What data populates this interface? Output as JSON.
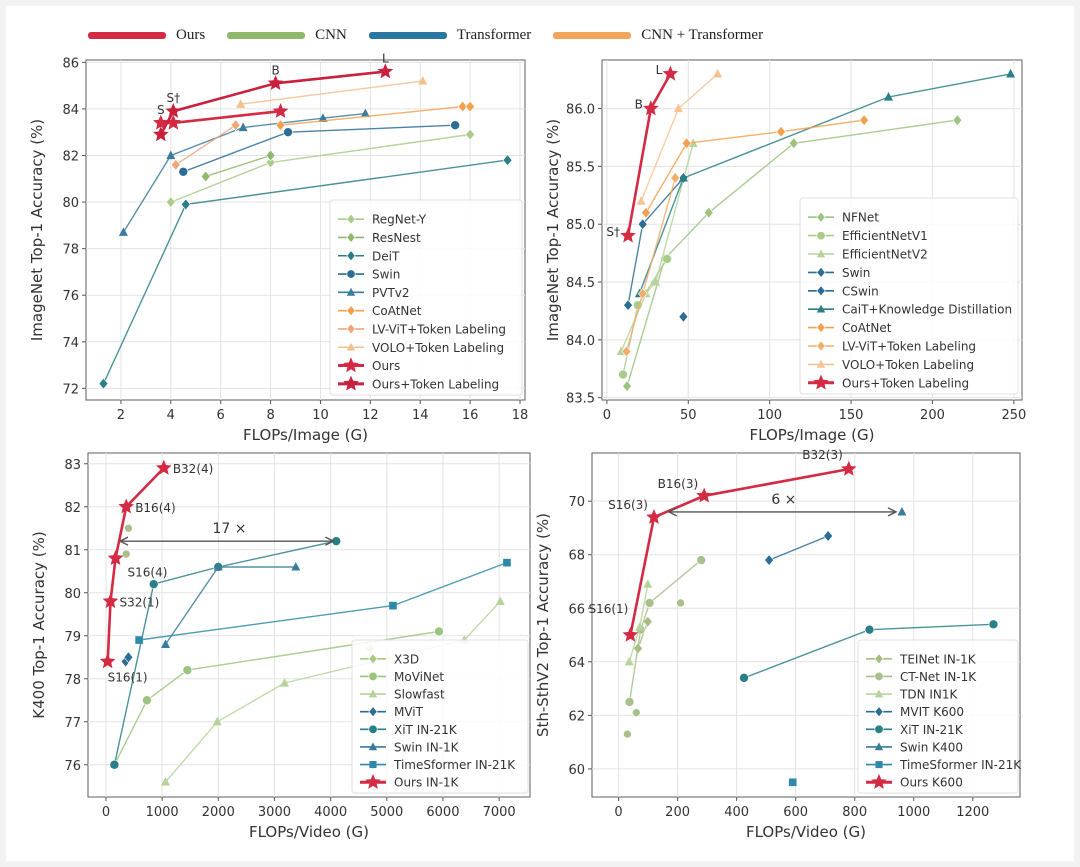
{
  "top_legend": [
    {
      "label": "Ours",
      "color": "#d42a44"
    },
    {
      "label": "CNN",
      "color": "#8fb86a"
    },
    {
      "label": "Transformer",
      "color": "#2b76a0"
    },
    {
      "label": "CNN + Transformer",
      "color": "#f5a55a"
    }
  ],
  "chart_data": [
    {
      "type": "line",
      "xlabel": "FLOPs/Image (G)",
      "ylabel": "ImageNet Top-1 Accuracy (%)",
      "xlim": [
        0.6,
        18.2
      ],
      "ylim": [
        71.5,
        86.1
      ],
      "xticks": [
        2,
        4,
        6,
        8,
        10,
        12,
        14,
        16,
        18
      ],
      "yticks": [
        72,
        74,
        76,
        78,
        80,
        82,
        84,
        86
      ],
      "grid": true,
      "legend_position": "lower-right",
      "series": [
        {
          "name": "RegNet-Y",
          "color": "#a9cc8a",
          "marker": "diamond",
          "x": [
            4.0,
            8.0,
            16.0
          ],
          "y": [
            80.0,
            81.7,
            82.9
          ]
        },
        {
          "name": "ResNest",
          "color": "#8fb86a",
          "marker": "diamond",
          "x": [
            5.4,
            8.0
          ],
          "y": [
            81.1,
            82.0
          ]
        },
        {
          "name": "DeiT",
          "color": "#2a7f86",
          "marker": "diamond",
          "x": [
            1.3,
            4.6,
            17.5
          ],
          "y": [
            72.2,
            79.9,
            81.8
          ]
        },
        {
          "name": "Swin",
          "color": "#2b6d94",
          "marker": "circle",
          "x": [
            4.5,
            8.7,
            15.4
          ],
          "y": [
            81.3,
            83.0,
            83.3
          ]
        },
        {
          "name": "PVTv2",
          "color": "#3a7c9c",
          "marker": "triangle",
          "x": [
            2.1,
            4.0,
            6.9,
            10.1,
            11.8
          ],
          "y": [
            78.7,
            82.0,
            83.2,
            83.6,
            83.8
          ]
        },
        {
          "name": "CoAtNet",
          "color": "#f5a04e",
          "marker": "diamond",
          "x": [
            8.4,
            15.7,
            16.0
          ],
          "y": [
            83.3,
            84.1,
            84.1
          ]
        },
        {
          "name": "LV-ViT+Token Labeling",
          "color": "#efa77a",
          "marker": "diamond",
          "x": [
            4.2,
            6.6
          ],
          "y": [
            81.6,
            83.3
          ]
        },
        {
          "name": "VOLO+Token Labeling",
          "color": "#f5c08e",
          "marker": "triangle",
          "x": [
            6.8,
            14.1
          ],
          "y": [
            84.2,
            85.2
          ]
        },
        {
          "name": "Ours",
          "color": "#d42a44",
          "marker": "star",
          "x": [
            3.6,
            4.1,
            8.4
          ],
          "y": [
            83.4,
            83.4,
            83.9
          ]
        },
        {
          "name": "Ours+Token Labeling",
          "color": "#c9203e",
          "marker": "star",
          "x": [
            3.6,
            4.1,
            8.2,
            12.6
          ],
          "y": [
            82.9,
            83.9,
            85.1,
            85.6
          ]
        }
      ],
      "annotations": [
        {
          "text": "S",
          "x": 3.6,
          "y": 83.4
        },
        {
          "text": "S†",
          "x": 4.1,
          "y": 83.9
        },
        {
          "text": "B",
          "x": 8.2,
          "y": 85.1
        },
        {
          "text": "L",
          "x": 12.6,
          "y": 85.6
        }
      ]
    },
    {
      "type": "line",
      "xlabel": "FLOPs/Image (G)",
      "ylabel": "ImageNet Top-1 Accuracy (%)",
      "xlim": [
        -3,
        255
      ],
      "ylim": [
        83.48,
        86.42
      ],
      "xticks": [
        0,
        50,
        100,
        150,
        200,
        250
      ],
      "yticks": [
        83.5,
        84.0,
        84.5,
        85.0,
        85.5,
        86.0
      ],
      "ytick_labels": [
        "83.5",
        "84.0",
        "84.5",
        "85.0",
        "85.5",
        "86.0"
      ],
      "grid": true,
      "legend_position": "lower-right",
      "series": [
        {
          "name": "NFNet",
          "color": "#9cc47e",
          "marker": "diamond",
          "x": [
            12.4,
            35.5,
            62.6,
            114.8,
            215.3
          ],
          "y": [
            83.6,
            84.7,
            85.1,
            85.7,
            85.9
          ]
        },
        {
          "name": "EfficientNetV1",
          "color": "#a9cc8a",
          "marker": "circle",
          "x": [
            9.9,
            19.0,
            37.0
          ],
          "y": [
            83.7,
            84.3,
            84.7
          ]
        },
        {
          "name": "EfficientNetV2",
          "color": "#b5d39b",
          "marker": "triangle",
          "x": [
            8.8,
            24.0,
            30.0,
            53.0
          ],
          "y": [
            83.9,
            84.4,
            84.5,
            85.7
          ]
        },
        {
          "name": "Swin",
          "color": "#2b6d94",
          "marker": "diamond",
          "x": [
            47.0
          ],
          "y": [
            84.2
          ]
        },
        {
          "name": "CSwin",
          "color": "#2b6d94",
          "marker": "diamond",
          "x": [
            13.0,
            22.0,
            47.0
          ],
          "y": [
            84.3,
            85.0,
            85.4
          ]
        },
        {
          "name": "CaiT+Knowledge Distillation",
          "color": "#2a7f86",
          "marker": "triangle",
          "x": [
            20.0,
            47.0,
            173.0,
            248.0
          ],
          "y": [
            84.4,
            85.4,
            86.1,
            86.3
          ]
        },
        {
          "name": "CoAtNet",
          "color": "#f5a04e",
          "marker": "diamond",
          "x": [
            24.0,
            49.0,
            107.0,
            158.0
          ],
          "y": [
            85.1,
            85.7,
            85.8,
            85.9
          ]
        },
        {
          "name": "LV-ViT+Token Labeling",
          "color": "#f3ad6b",
          "marker": "diamond",
          "x": [
            12.0,
            22.0,
            42.0
          ],
          "y": [
            83.9,
            84.4,
            85.4
          ]
        },
        {
          "name": "VOLO+Token Labeling",
          "color": "#f6c494",
          "marker": "triangle",
          "x": [
            21.0,
            44.0,
            68.0
          ],
          "y": [
            85.2,
            86.0,
            86.3
          ]
        },
        {
          "name": "Ours+Token Labeling",
          "color": "#d42a44",
          "marker": "star",
          "x": [
            13.0,
            27.0,
            39.0
          ],
          "y": [
            84.9,
            86.0,
            86.3
          ]
        }
      ],
      "annotations": [
        {
          "text": "S†",
          "x": 13.0,
          "y": 84.9
        },
        {
          "text": "B",
          "x": 27.0,
          "y": 86.0
        },
        {
          "text": "L",
          "x": 39.0,
          "y": 86.3
        }
      ]
    },
    {
      "type": "line",
      "xlabel": "FLOPs/Video (G)",
      "ylabel": "K400 Top-1 Accuracy (%)",
      "xlim": [
        -320,
        7550
      ],
      "ylim": [
        75.25,
        83.25
      ],
      "xticks": [
        0,
        1000,
        2000,
        3000,
        4000,
        5000,
        6000,
        7000
      ],
      "yticks": [
        76,
        77,
        78,
        79,
        80,
        81,
        82,
        83
      ],
      "grid": true,
      "legend_position": "lower-right",
      "series": [
        {
          "name": "X3D",
          "color": "#a9cc8a",
          "marker": "diamond",
          "x": [
            4700
          ],
          "y": [
            78.7
          ]
        },
        {
          "name": "MoViNet",
          "color": "#9cc47e",
          "marker": "circle",
          "x": [
            150,
            730,
            1450,
            5930
          ],
          "y": [
            76.0,
            77.5,
            78.2,
            79.1
          ]
        },
        {
          "name": "Slowfast",
          "color": "#b5d39b",
          "marker": "triangle",
          "x": [
            1060,
            1980,
            3180,
            6380,
            7020
          ],
          "y": [
            75.6,
            77.0,
            77.9,
            78.9,
            79.8
          ]
        },
        {
          "name": "MViT",
          "color": "#2b6d94",
          "marker": "diamond",
          "x": [
            350,
            400
          ],
          "y": [
            78.4,
            78.5
          ]
        },
        {
          "name": "XiT IN-21K",
          "color": "#2a7f86",
          "marker": "circle",
          "x": [
            150,
            850,
            2000,
            4100
          ],
          "y": [
            76.0,
            80.2,
            80.6,
            81.2
          ]
        },
        {
          "name": "Swin IN-1K",
          "color": "#3a7c9c",
          "marker": "triangle",
          "x": [
            1060,
            2000,
            3380
          ],
          "y": [
            78.8,
            80.6,
            80.6
          ]
        },
        {
          "name": "TimeSformer IN-21K",
          "color": "#2e8aa8",
          "marker": "square",
          "x": [
            590,
            5110,
            7140
          ],
          "y": [
            78.9,
            79.7,
            80.7
          ]
        },
        {
          "name": "Ours IN-1K",
          "color": "#d42a44",
          "marker": "star",
          "x": [
            30,
            80,
            170,
            360,
            1030
          ],
          "y": [
            78.4,
            79.8,
            80.8,
            82.0,
            82.9
          ]
        }
      ],
      "extra_green_points": {
        "x": [
          360,
          400
        ],
        "y": [
          80.9,
          81.5
        ]
      },
      "annotations": [
        {
          "text": "S16(1)",
          "x": 30,
          "y": 78.4
        },
        {
          "text": "S32(1)",
          "x": 80,
          "y": 79.8
        },
        {
          "text": "S16(4)",
          "x": 170,
          "y": 80.8
        },
        {
          "text": "B16(4)",
          "x": 360,
          "y": 82.0
        },
        {
          "text": "B32(4)",
          "x": 1030,
          "y": 82.9
        },
        {
          "text": "17 ×",
          "x": 2200,
          "y": 81.2,
          "kind": "arrow",
          "x_from": 250,
          "x_to": 4050
        }
      ]
    },
    {
      "type": "line",
      "xlabel": "FLOPs/Video (G)",
      "ylabel": "Sth-SthV2 Top-1 Accuracy (%)",
      "xlim": [
        -90,
        1360
      ],
      "ylim": [
        58.95,
        71.8
      ],
      "xticks": [
        0,
        200,
        400,
        600,
        800,
        1000,
        1200
      ],
      "yticks": [
        60,
        62,
        64,
        66,
        68,
        70
      ],
      "grid": true,
      "legend_position": "lower-right",
      "series": [
        {
          "name": "TEINet IN-1K",
          "color": "#a6bd7f",
          "marker": "diamond",
          "x": [
            66,
            99
          ],
          "y": [
            64.5,
            65.5
          ]
        },
        {
          "name": "CT-Net IN-1K",
          "color": "#a9c08c",
          "marker": "circle",
          "x": [
            37,
            75,
            105,
            280
          ],
          "y": [
            62.5,
            65.2,
            66.2,
            67.8
          ]
        },
        {
          "name": "TDN IN1K",
          "color": "#b5d39b",
          "marker": "triangle",
          "x": [
            36,
            72,
            99
          ],
          "y": [
            64.0,
            65.3,
            66.9
          ]
        },
        {
          "name": "MVIT K600",
          "color": "#2b6d94",
          "marker": "diamond",
          "x": [
            510,
            710
          ],
          "y": [
            67.8,
            68.7
          ]
        },
        {
          "name": "XiT IN-21K",
          "color": "#2a7f86",
          "marker": "circle",
          "x": [
            425,
            850,
            1270
          ],
          "y": [
            63.4,
            65.2,
            65.4
          ]
        },
        {
          "name": "Swin K400",
          "color": "#3a7c9c",
          "marker": "triangle",
          "x": [
            960
          ],
          "y": [
            69.6
          ]
        },
        {
          "name": "TimeSformer IN-21K",
          "color": "#2e8aa8",
          "marker": "square",
          "x": [
            590
          ],
          "y": [
            59.5
          ]
        },
        {
          "name": "Ours K600",
          "color": "#d42a44",
          "marker": "star",
          "x": [
            40,
            120,
            290,
            780
          ],
          "y": [
            65.0,
            69.4,
            70.2,
            71.2
          ]
        }
      ],
      "extra_green_points": {
        "x": [
          30,
          60,
          210
        ],
        "y": [
          61.3,
          62.1,
          66.2
        ]
      },
      "annotations": [
        {
          "text": "S16(1)",
          "x": 40,
          "y": 65.0
        },
        {
          "text": "S16(3)",
          "x": 120,
          "y": 69.4
        },
        {
          "text": "B16(3)",
          "x": 290,
          "y": 70.2
        },
        {
          "text": "B32(3)",
          "x": 780,
          "y": 71.2
        },
        {
          "text": "6 ×",
          "x": 560,
          "y": 69.6,
          "kind": "arrow",
          "x_from": 170,
          "x_to": 940
        }
      ]
    }
  ]
}
